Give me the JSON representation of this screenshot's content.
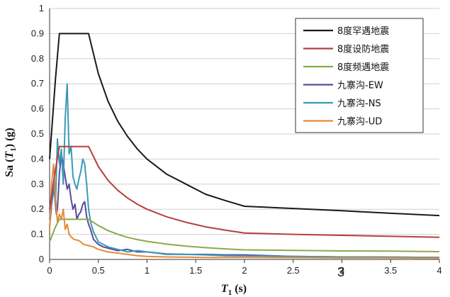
{
  "chart_data": {
    "type": "line",
    "xlabel": "T1 (s)",
    "ylabel": "Sa (T1) (g)",
    "xlim": [
      0,
      4
    ],
    "ylim": [
      0,
      1
    ],
    "xticks": [
      "0",
      "0.5",
      "1",
      "1.5",
      "2",
      "2.5",
      "3",
      "3.5",
      "4"
    ],
    "yticks": [
      "0",
      "0.1",
      "0.2",
      "0.3",
      "0.4",
      "0.5",
      "0.6",
      "0.7",
      "0.8",
      "0.9",
      "1"
    ],
    "grid": true,
    "legend_position": "top-right",
    "annotation": "3",
    "series": [
      {
        "name": "8度罕遇地震",
        "color": "#1a1a1a",
        "x": [
          0,
          0.06,
          0.1,
          0.2,
          0.3,
          0.4,
          0.5,
          0.6,
          0.7,
          0.8,
          0.9,
          1.0,
          1.2,
          1.4,
          1.6,
          1.8,
          2.0,
          2.5,
          3.0,
          3.5,
          4.0
        ],
        "y": [
          0.4,
          0.72,
          0.9,
          0.9,
          0.9,
          0.9,
          0.74,
          0.63,
          0.55,
          0.49,
          0.44,
          0.4,
          0.34,
          0.3,
          0.26,
          0.235,
          0.212,
          0.203,
          0.194,
          0.184,
          0.175
        ]
      },
      {
        "name": "8度设防地震",
        "color": "#b5413f",
        "x": [
          0,
          0.06,
          0.1,
          0.2,
          0.3,
          0.4,
          0.5,
          0.6,
          0.7,
          0.8,
          0.9,
          1.0,
          1.2,
          1.4,
          1.6,
          1.8,
          2.0,
          2.5,
          3.0,
          3.5,
          4.0
        ],
        "y": [
          0.2,
          0.36,
          0.45,
          0.45,
          0.45,
          0.45,
          0.37,
          0.315,
          0.275,
          0.245,
          0.22,
          0.2,
          0.17,
          0.148,
          0.13,
          0.117,
          0.105,
          0.1,
          0.096,
          0.092,
          0.088
        ]
      },
      {
        "name": "8度频遇地震",
        "color": "#8aab4a",
        "x": [
          0,
          0.06,
          0.1,
          0.2,
          0.3,
          0.4,
          0.5,
          0.6,
          0.7,
          0.8,
          0.9,
          1.0,
          1.2,
          1.4,
          1.6,
          1.8,
          2.0,
          2.5,
          3.0,
          3.5,
          4.0
        ],
        "y": [
          0.07,
          0.13,
          0.16,
          0.16,
          0.16,
          0.16,
          0.135,
          0.115,
          0.1,
          0.088,
          0.079,
          0.072,
          0.061,
          0.053,
          0.047,
          0.042,
          0.038,
          0.036,
          0.034,
          0.033,
          0.031
        ]
      },
      {
        "name": "九寨沟-EW",
        "color": "#5a4a99",
        "x": [
          0,
          0.02,
          0.04,
          0.05,
          0.07,
          0.08,
          0.1,
          0.12,
          0.14,
          0.16,
          0.18,
          0.2,
          0.22,
          0.24,
          0.26,
          0.28,
          0.3,
          0.32,
          0.34,
          0.36,
          0.38,
          0.4,
          0.42,
          0.45,
          0.5,
          0.55,
          0.6,
          0.7,
          0.8,
          0.9,
          1.0,
          1.2,
          1.4,
          1.6,
          1.8,
          2.0,
          2.5,
          3.0,
          3.5,
          4.0
        ],
        "y": [
          0.13,
          0.22,
          0.28,
          0.26,
          0.18,
          0.2,
          0.34,
          0.42,
          0.38,
          0.33,
          0.28,
          0.3,
          0.24,
          0.2,
          0.22,
          0.16,
          0.18,
          0.19,
          0.22,
          0.23,
          0.17,
          0.14,
          0.12,
          0.08,
          0.06,
          0.05,
          0.045,
          0.035,
          0.04,
          0.03,
          0.03,
          0.022,
          0.02,
          0.02,
          0.018,
          0.018,
          0.012,
          0.01,
          0.009,
          0.008
        ]
      },
      {
        "name": "九寨沟-NS",
        "color": "#3b9ab6",
        "x": [
          0,
          0.02,
          0.04,
          0.06,
          0.08,
          0.1,
          0.12,
          0.14,
          0.16,
          0.18,
          0.2,
          0.22,
          0.24,
          0.26,
          0.28,
          0.3,
          0.32,
          0.34,
          0.36,
          0.38,
          0.4,
          0.42,
          0.45,
          0.5,
          0.55,
          0.6,
          0.7,
          0.8,
          0.9,
          1.0,
          1.2,
          1.4,
          1.6,
          1.8,
          2.0,
          2.5,
          3.0,
          3.5,
          4.0
        ],
        "y": [
          0.16,
          0.24,
          0.3,
          0.22,
          0.48,
          0.38,
          0.44,
          0.3,
          0.56,
          0.7,
          0.42,
          0.45,
          0.33,
          0.3,
          0.28,
          0.32,
          0.35,
          0.4,
          0.38,
          0.3,
          0.2,
          0.15,
          0.11,
          0.07,
          0.06,
          0.05,
          0.04,
          0.03,
          0.035,
          0.03,
          0.02,
          0.02,
          0.018,
          0.015,
          0.014,
          0.012,
          0.01,
          0.009,
          0.008
        ]
      },
      {
        "name": "九寨沟-UD",
        "color": "#e8893a",
        "x": [
          0,
          0.02,
          0.04,
          0.06,
          0.08,
          0.1,
          0.12,
          0.14,
          0.16,
          0.18,
          0.2,
          0.22,
          0.25,
          0.3,
          0.35,
          0.4,
          0.45,
          0.5,
          0.6,
          0.7,
          0.8,
          0.9,
          1.0,
          1.2,
          1.4,
          1.6,
          1.8,
          2.0,
          2.5,
          3.0,
          3.5,
          4.0
        ],
        "y": [
          0.12,
          0.3,
          0.38,
          0.25,
          0.15,
          0.18,
          0.16,
          0.2,
          0.12,
          0.14,
          0.1,
          0.09,
          0.08,
          0.075,
          0.06,
          0.055,
          0.05,
          0.04,
          0.03,
          0.025,
          0.02,
          0.015,
          0.012,
          0.01,
          0.009,
          0.008,
          0.008,
          0.008,
          0.007,
          0.006,
          0.006,
          0.005
        ]
      }
    ]
  }
}
